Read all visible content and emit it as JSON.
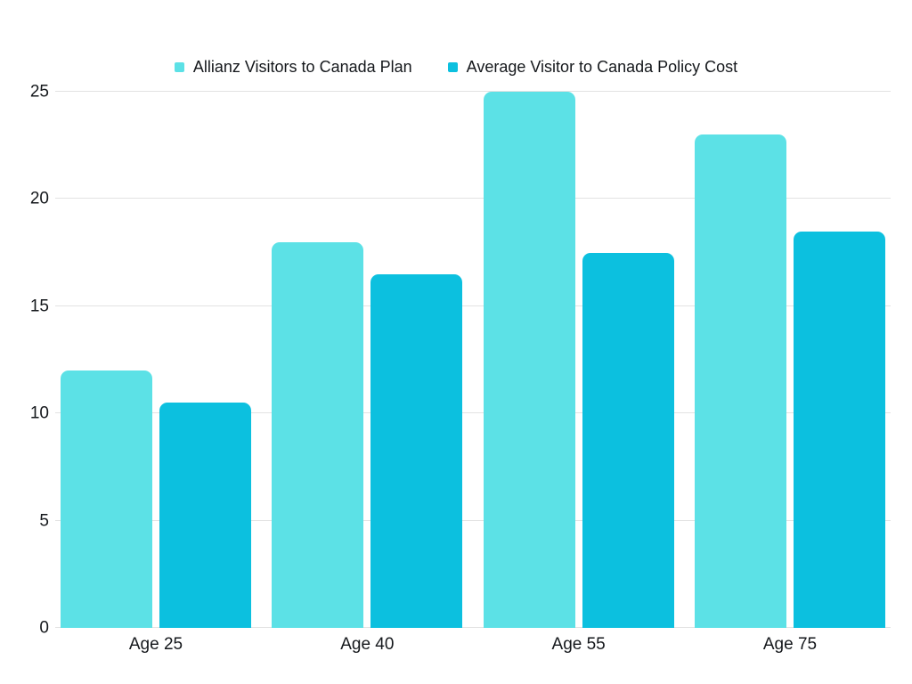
{
  "chart_data": {
    "type": "bar",
    "title": "",
    "xlabel": "",
    "ylabel": "",
    "categories": [
      "Age 25",
      "Age 40",
      "Age 55",
      "Age 75"
    ],
    "series": [
      {
        "name": "Allianz Visitors to Canada Plan",
        "color": "#5CE1E6",
        "values": [
          12,
          18,
          25,
          23
        ]
      },
      {
        "name": "Average Visitor to Canada Policy Cost",
        "color": "#0CC0DF",
        "values": [
          10.5,
          16.5,
          17.5,
          18.5
        ]
      }
    ],
    "yticks": [
      0,
      5,
      10,
      15,
      20,
      25
    ],
    "ylim": [
      0,
      25
    ],
    "grid": true,
    "legend_position": "top-center",
    "colors": {
      "gridline": "#e2e2e2",
      "text": "#15181c",
      "background": "#ffffff"
    }
  }
}
